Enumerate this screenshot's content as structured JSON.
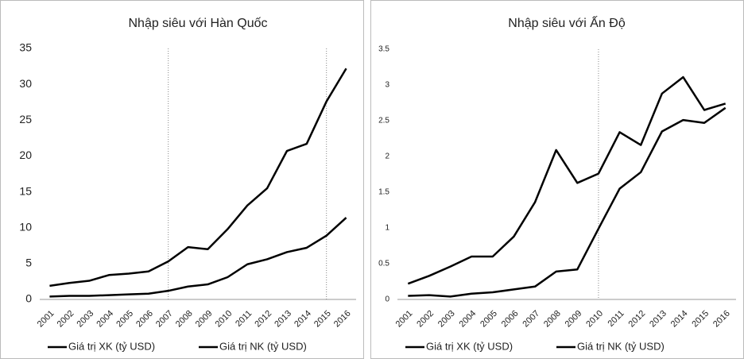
{
  "chart_data": [
    {
      "type": "line",
      "title": "Nhập siêu với Hàn Quốc",
      "categories": [
        "2001",
        "2002",
        "2003",
        "2004",
        "2005",
        "2006",
        "2007",
        "2008",
        "2009",
        "2010",
        "2011",
        "2012",
        "2013",
        "2014",
        "2015",
        "2016"
      ],
      "series": [
        {
          "name": "Giá trị XK (tỷ USD)",
          "color": "#000000",
          "values": [
            0.4,
            0.5,
            0.5,
            0.6,
            0.7,
            0.8,
            1.2,
            1.8,
            2.1,
            3.1,
            4.9,
            5.6,
            6.6,
            7.2,
            8.9,
            11.4
          ]
        },
        {
          "name": "Giá trị NK (tỷ USD)",
          "color": "#000000",
          "values": [
            1.9,
            2.3,
            2.6,
            3.4,
            3.6,
            3.9,
            5.3,
            7.3,
            7.0,
            9.8,
            13.1,
            15.5,
            20.7,
            21.7,
            27.6,
            32.2
          ]
        }
      ],
      "ylim": [
        0,
        35
      ],
      "yticks": [
        0,
        5,
        10,
        15,
        20,
        25,
        30,
        35
      ],
      "grid": false,
      "legend": "bottom",
      "reference_lines": [
        "2007",
        "2015"
      ]
    },
    {
      "type": "line",
      "title": "Nhập siêu với Ấn Độ",
      "categories": [
        "2001",
        "2002",
        "2003",
        "2004",
        "2005",
        "2006",
        "2007",
        "2008",
        "2009",
        "2010",
        "2011",
        "2012",
        "2013",
        "2014",
        "2015",
        "2016"
      ],
      "series": [
        {
          "name": "Giá trị XK (tỷ USD)",
          "color": "#000000",
          "values": [
            0.05,
            0.06,
            0.04,
            0.08,
            0.1,
            0.14,
            0.18,
            0.39,
            0.42,
            0.99,
            1.55,
            1.78,
            2.35,
            2.51,
            2.47,
            2.68
          ]
        },
        {
          "name": "Giá trị NK (tỷ USD)",
          "color": "#000000",
          "values": [
            0.22,
            0.33,
            0.46,
            0.6,
            0.6,
            0.88,
            1.36,
            2.09,
            1.63,
            1.76,
            2.34,
            2.16,
            2.88,
            3.11,
            2.65,
            2.74
          ]
        }
      ],
      "ylim": [
        0,
        3.5
      ],
      "yticks": [
        0,
        0.5,
        1,
        1.5,
        2,
        2.5,
        3,
        3.5
      ],
      "grid": false,
      "legend": "bottom",
      "reference_lines": [
        "2010"
      ]
    }
  ]
}
